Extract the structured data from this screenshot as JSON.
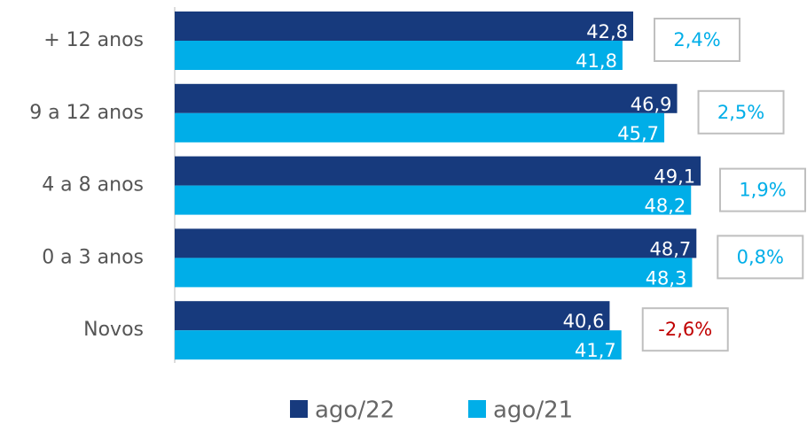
{
  "chart_data": {
    "type": "barh",
    "categories": [
      "+ 12 anos",
      "9 a 12 anos",
      "4 a 8 anos",
      "0 a 3 anos",
      "Novos"
    ],
    "series": [
      {
        "name": "ago/22",
        "color": "#173a7d",
        "values": [
          42.8,
          46.9,
          49.1,
          48.7,
          40.6
        ],
        "value_labels": [
          "42,8",
          "46,9",
          "49,1",
          "48,7",
          "40,6"
        ]
      },
      {
        "name": "ago/21",
        "color": "#00aee8",
        "values": [
          41.8,
          45.7,
          48.2,
          48.3,
          41.7
        ],
        "value_labels": [
          "41,8",
          "45,7",
          "48,2",
          "48,3",
          "41,7"
        ]
      }
    ],
    "annotations": [
      {
        "text": "2,4%",
        "color": "#00aee8"
      },
      {
        "text": "2,5%",
        "color": "#00aee8"
      },
      {
        "text": "1,9%",
        "color": "#00aee8"
      },
      {
        "text": "0,8%",
        "color": "#00aee8"
      },
      {
        "text": "-2,6%",
        "color": "#c00000"
      }
    ]
  }
}
